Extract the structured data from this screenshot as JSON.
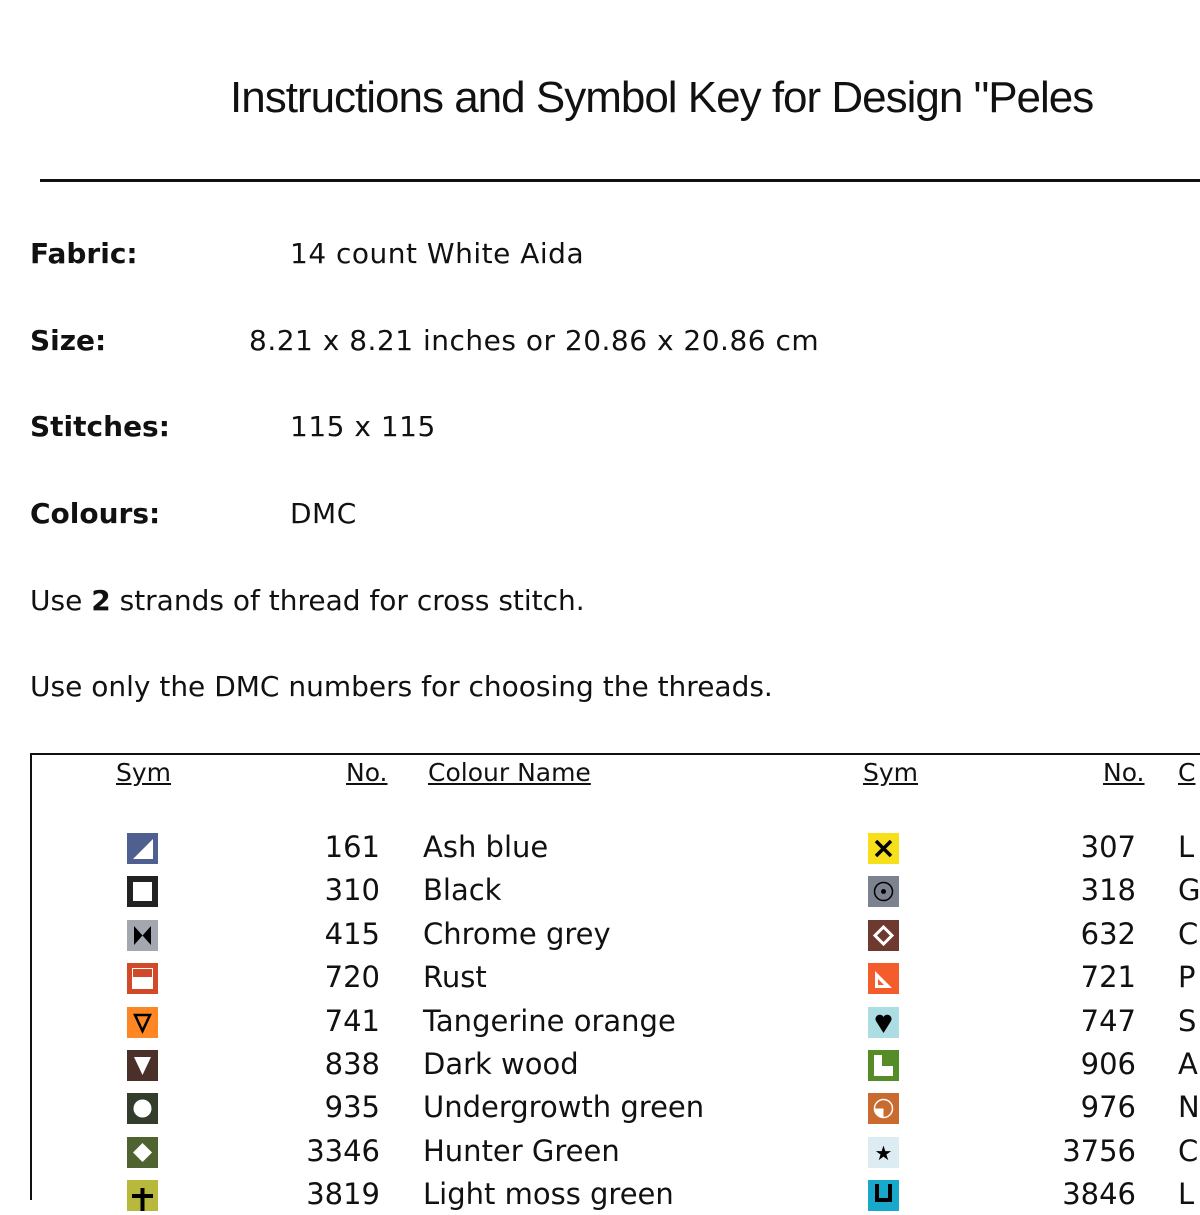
{
  "title": "Instructions and Symbol Key for Design \"Peles",
  "info": {
    "fabric_label": "Fabric:",
    "fabric": "14 count White Aida",
    "size_label": "Size:",
    "size": "8.21 x 8.21 inches or 20.86 x 20.86 cm",
    "stitches_label": "Stitches:",
    "stitches": "115 x 115",
    "colours_label": "Colours:",
    "colours": "DMC"
  },
  "strands": {
    "pre": "Use ",
    "count": "2",
    "post": " strands of thread for cross stitch."
  },
  "note": "Use only the DMC numbers for choosing the threads.",
  "headers": {
    "sym": "Sym",
    "no": "No.",
    "name": "Colour Name",
    "name_right": "C"
  },
  "left_rows": [
    {
      "icon": "triangle-corner",
      "color": "#4f5f8f",
      "no": "161",
      "name": "Ash blue"
    },
    {
      "icon": "hollow-square",
      "color": "#222222",
      "no": "310",
      "name": "Black"
    },
    {
      "icon": "bowtie",
      "color": "#a3a8b0",
      "no": "415",
      "name": "Chrome grey"
    },
    {
      "icon": "half-bar",
      "color": "#d2492a",
      "no": "720",
      "name": "Rust"
    },
    {
      "icon": "triangle-down-outline",
      "color": "#ff8624",
      "no": "741",
      "name": "Tangerine orange"
    },
    {
      "icon": "triangle-down",
      "color": "#4a3028",
      "no": "838",
      "name": "Dark wood"
    },
    {
      "icon": "circle",
      "color": "#343c2c",
      "no": "935",
      "name": "Undergrowth green"
    },
    {
      "icon": "diamond",
      "color": "#4e6330",
      "no": "3346",
      "name": "Hunter Green"
    },
    {
      "icon": "plus",
      "color": "#b8b83c",
      "no": "3819",
      "name": "Light moss green"
    }
  ],
  "right_rows": [
    {
      "icon": "x-mark",
      "color": "#f7e01a",
      "no": "307",
      "name": "L"
    },
    {
      "icon": "circle-dot",
      "color": "#7c8290",
      "no": "318",
      "name": "G"
    },
    {
      "icon": "diamond-outline",
      "color": "#6e3a30",
      "no": "632",
      "name": "C"
    },
    {
      "icon": "set-square",
      "color": "#f45c2c",
      "no": "721",
      "name": "P"
    },
    {
      "icon": "heart",
      "color": "#acdde2",
      "no": "747",
      "name": "S"
    },
    {
      "icon": "l-shape",
      "color": "#558c28",
      "no": "906",
      "name": "A"
    },
    {
      "icon": "circle-quarter",
      "color": "#c96a2e",
      "no": "976",
      "name": "N"
    },
    {
      "icon": "star",
      "color": "#dcecf2",
      "no": "3756",
      "name": "C"
    },
    {
      "icon": "u-shape",
      "color": "#18a8cc",
      "no": "3846",
      "name": "L"
    }
  ]
}
